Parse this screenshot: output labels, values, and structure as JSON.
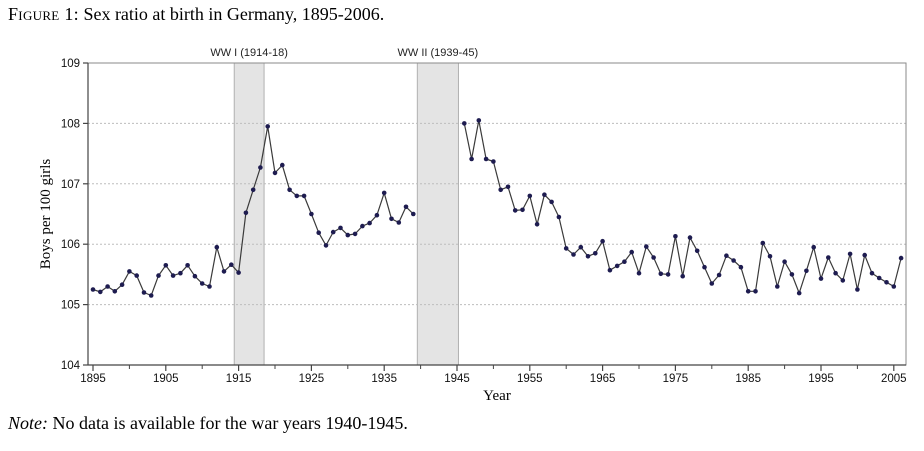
{
  "title": {
    "prefix": "Figure 1:",
    "rest": " Sex ratio at birth in Germany, 1895-2006."
  },
  "note": {
    "prefix": "Note:",
    "rest": " No data is available for the war years 1940-1945."
  },
  "colors": {
    "line": "#3a3a3a",
    "marker": "#1e1c50",
    "band_fill": "#e4e4e4",
    "band_edge": "#b0b0b0",
    "grid": "#bdbdbd",
    "axis": "#444444",
    "frame": "#8a8a8a"
  },
  "chart_data": {
    "type": "line",
    "title": "Sex ratio at birth in Germany, 1895-2006",
    "xlabel": "Year",
    "ylabel": "Boys per 100 girls",
    "xlim": [
      1895,
      2006
    ],
    "ylim": [
      104,
      109
    ],
    "grid": "horizontal-dashed",
    "legend": "none",
    "y_ticks": [
      104,
      105,
      106,
      107,
      108,
      109
    ],
    "gridlines_y": [
      105,
      106,
      107,
      108
    ],
    "x_major_ticks": [
      1895,
      1905,
      1915,
      1925,
      1935,
      1945,
      1955,
      1965,
      1975,
      1985,
      1995,
      2005
    ],
    "x_minor_ticks": [
      1900,
      1910,
      1920,
      1930,
      1940,
      1950,
      1960,
      1970,
      1980,
      1990,
      2000
    ],
    "bands": [
      {
        "label": "WW I (1914-18)",
        "from": 1914.4,
        "to": 1918.5
      },
      {
        "label": "WW II (1939-45)",
        "from": 1939.55,
        "to": 1945.2
      }
    ],
    "gap_note": "no data 1940-1945",
    "series": [
      {
        "name": "boys-per-100-girls",
        "segments": [
          {
            "start_year": 1895,
            "values": [
              105.25,
              105.21,
              105.3,
              105.22,
              105.33,
              105.55,
              105.48,
              105.2,
              105.15,
              105.48,
              105.65,
              105.48,
              105.52,
              105.65,
              105.47,
              105.35,
              105.3,
              105.95,
              105.55,
              105.66,
              105.53,
              106.52,
              106.9,
              107.27,
              107.95,
              107.18,
              107.31,
              106.9,
              106.8,
              106.8,
              106.5,
              106.19,
              105.98,
              106.2,
              106.27,
              106.15,
              106.17,
              106.3,
              106.35,
              106.48,
              106.85,
              106.42,
              106.36,
              106.62,
              106.5
            ]
          },
          {
            "start_year": 1946,
            "values": [
              108.0,
              107.41,
              108.05,
              107.41,
              107.37,
              106.9,
              106.95,
              106.56,
              106.57,
              106.8,
              106.33,
              106.82,
              106.7,
              106.45,
              105.93,
              105.83,
              105.95,
              105.8,
              105.85,
              106.05,
              105.57,
              105.64,
              105.71,
              105.87,
              105.52,
              105.96,
              105.78,
              105.51,
              105.5,
              106.13,
              105.47,
              106.11,
              105.89,
              105.62,
              105.35,
              105.49,
              105.81,
              105.73,
              105.62,
              105.22,
              105.22,
              106.02,
              105.8,
              105.3,
              105.71,
              105.5,
              105.19,
              105.56,
              105.95,
              105.43,
              105.78,
              105.52,
              105.4,
              105.84,
              105.25,
              105.82,
              105.52,
              105.44,
              105.37,
              105.3,
              105.77
            ]
          }
        ]
      }
    ]
  }
}
